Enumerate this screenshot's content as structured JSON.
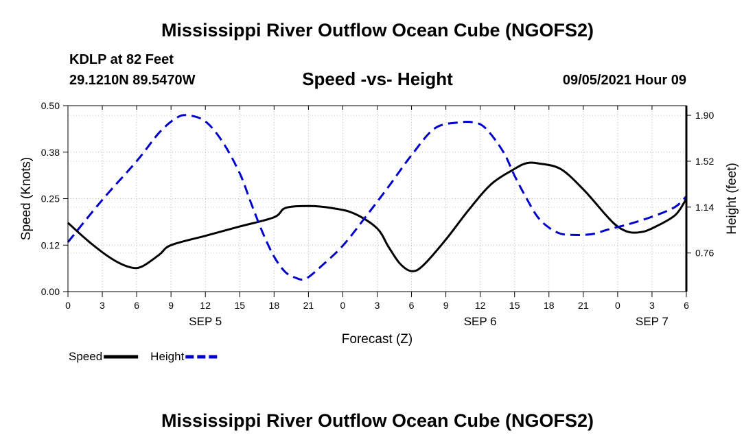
{
  "header": {
    "title": "Mississippi River Outflow Ocean Cube (NGOFS2)",
    "station": "KDLP at 82 Feet",
    "coords": "29.1210N  89.5470W",
    "subtitle": "Speed -vs- Height",
    "datetime": "09/05/2021 Hour 09"
  },
  "footer": {
    "title": "Mississippi River Outflow Ocean Cube (NGOFS2)"
  },
  "chart_data": {
    "type": "line",
    "title": "Speed -vs- Height",
    "xlabel": "Forecast (Z)",
    "ylabel": "Speed (Knots)",
    "y2label": "Height (feet)",
    "xlim": [
      0,
      54
    ],
    "ylim": [
      0,
      0.5
    ],
    "y2lim": [
      0.44,
      1.98
    ],
    "x_ticks": [
      0,
      3,
      6,
      9,
      12,
      15,
      18,
      21,
      24,
      27,
      30,
      33,
      36,
      39,
      42,
      45,
      48,
      51,
      54
    ],
    "x_tick_labels": [
      "0",
      "3",
      "6",
      "9",
      "12",
      "15",
      "18",
      "21",
      "0",
      "3",
      "6",
      "9",
      "12",
      "15",
      "18",
      "21",
      "0",
      "3",
      "6"
    ],
    "day_labels": [
      {
        "x": 12,
        "label": "SEP 5"
      },
      {
        "x": 36,
        "label": "SEP 6"
      },
      {
        "x": 51,
        "label": "SEP 7"
      }
    ],
    "y_ticks": [
      0,
      0.125,
      0.25,
      0.375,
      0.5
    ],
    "y_tick_labels": [
      "0.00",
      "0.12",
      "0.25",
      "0.38",
      "0.50"
    ],
    "y2_ticks": [
      0.76,
      1.14,
      1.52,
      1.9
    ],
    "y2_tick_labels": [
      "0.76",
      "1.14",
      "1.52",
      "1.90"
    ],
    "grid": true,
    "legend": "bottom-left",
    "series": [
      {
        "name": "Speed",
        "axis": "left",
        "color": "#000000",
        "dash": "solid",
        "x": [
          0,
          2,
          4,
          5.5,
          6.5,
          8,
          9,
          12,
          15,
          18,
          19,
          21,
          23,
          25,
          27,
          28,
          29,
          30,
          31,
          33,
          35,
          37,
          39,
          40,
          41,
          43,
          45,
          47,
          48,
          49,
          50,
          51,
          53,
          54
        ],
        "y": [
          0.185,
          0.13,
          0.085,
          0.065,
          0.068,
          0.1,
          0.125,
          0.15,
          0.175,
          0.2,
          0.225,
          0.23,
          0.225,
          0.21,
          0.17,
          0.12,
          0.075,
          0.055,
          0.07,
          0.14,
          0.22,
          0.29,
          0.33,
          0.345,
          0.345,
          0.33,
          0.275,
          0.205,
          0.175,
          0.16,
          0.16,
          0.17,
          0.205,
          0.25
        ]
      },
      {
        "name": "Height",
        "axis": "right",
        "color": "#0000cc",
        "dash": "dashed",
        "x": [
          0,
          3,
          6,
          8,
          9.5,
          10.5,
          12,
          13.5,
          15,
          16,
          17,
          18,
          19,
          20,
          20.5,
          21,
          22,
          24,
          26,
          28,
          30,
          32,
          34,
          35.5,
          36.5,
          38,
          39,
          40,
          41,
          42,
          43,
          44,
          45,
          46,
          47,
          49,
          51,
          53,
          54
        ],
        "y": [
          0.85,
          1.2,
          1.52,
          1.76,
          1.88,
          1.9,
          1.85,
          1.68,
          1.42,
          1.17,
          0.93,
          0.73,
          0.6,
          0.55,
          0.54,
          0.56,
          0.64,
          0.82,
          1.06,
          1.31,
          1.57,
          1.79,
          1.84,
          1.84,
          1.79,
          1.6,
          1.4,
          1.22,
          1.06,
          0.97,
          0.92,
          0.91,
          0.91,
          0.92,
          0.95,
          1.0,
          1.06,
          1.14,
          1.23
        ]
      }
    ]
  }
}
